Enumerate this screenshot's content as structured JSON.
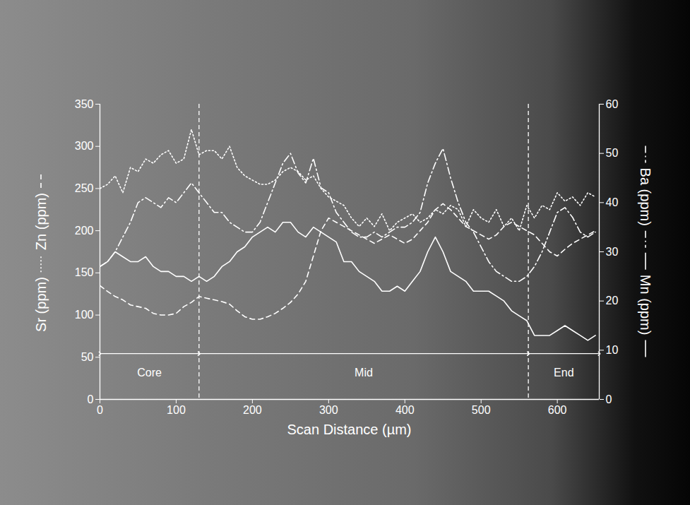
{
  "chart_data": {
    "type": "line",
    "x_label": "Scan Distance (µm)",
    "xlim": [
      0,
      655
    ],
    "xticks": [
      0,
      100,
      200,
      300,
      400,
      500,
      600
    ],
    "ylim": [
      0,
      350
    ],
    "yticks": [
      0,
      50,
      100,
      150,
      200,
      250,
      300,
      350
    ],
    "y2lim": [
      0,
      60
    ],
    "y2ticks": [
      0,
      10,
      20,
      30,
      40,
      50,
      60
    ],
    "x": [
      0,
      10,
      20,
      30,
      40,
      50,
      60,
      70,
      80,
      90,
      100,
      110,
      120,
      130,
      140,
      150,
      160,
      170,
      180,
      190,
      200,
      210,
      220,
      230,
      240,
      250,
      260,
      270,
      280,
      290,
      300,
      310,
      320,
      330,
      340,
      350,
      360,
      370,
      380,
      390,
      400,
      410,
      420,
      430,
      440,
      450,
      460,
      470,
      480,
      490,
      500,
      510,
      520,
      530,
      540,
      550,
      560,
      570,
      580,
      590,
      600,
      610,
      620,
      630,
      640,
      650
    ],
    "series": [
      {
        "name": "Sr (ppm)",
        "color": "#ffffff",
        "line_style": "dotted",
        "values": [
          250,
          255,
          265,
          245,
          275,
          270,
          285,
          280,
          290,
          295,
          280,
          285,
          320,
          290,
          295,
          295,
          285,
          300,
          275,
          265,
          260,
          255,
          255,
          260,
          270,
          275,
          270,
          260,
          265,
          250,
          240,
          235,
          230,
          215,
          205,
          215,
          205,
          220,
          200,
          210,
          215,
          220,
          210,
          215,
          225,
          220,
          230,
          225,
          205,
          225,
          215,
          210,
          225,
          205,
          215,
          200,
          230,
          215,
          230,
          225,
          245,
          235,
          240,
          230,
          245,
          240
        ]
      },
      {
        "name": "Zn (ppm)",
        "color": "#ffffff",
        "line_style": "dashed",
        "values": [
          135,
          128,
          122,
          118,
          112,
          110,
          108,
          102,
          100,
          100,
          102,
          110,
          115,
          122,
          120,
          118,
          116,
          113,
          105,
          98,
          95,
          95,
          98,
          102,
          108,
          115,
          125,
          140,
          170,
          200,
          215,
          210,
          205,
          200,
          195,
          190,
          185,
          190,
          195,
          190,
          185,
          190,
          200,
          210,
          225,
          232,
          225,
          215,
          205,
          200,
          195,
          190,
          195,
          205,
          210,
          205,
          200,
          195,
          185,
          175,
          170,
          178,
          185,
          190,
          195,
          200
        ]
      },
      {
        "name": "Ba (ppm)",
        "color": "#ffffff",
        "line_style": "dashdot",
        "axis": "y2",
        "values": [
          27,
          28,
          30,
          33,
          36,
          40,
          41,
          40,
          39,
          41,
          40,
          42,
          44,
          42,
          40,
          38,
          38,
          36,
          35,
          34,
          34,
          36,
          40,
          44,
          48,
          50,
          46,
          44,
          49,
          43,
          42,
          38,
          36,
          34,
          33,
          33,
          34,
          33,
          34,
          35,
          35,
          36,
          38,
          44,
          48,
          51,
          45,
          40,
          36,
          34,
          31,
          28,
          26,
          25,
          24,
          24,
          25,
          27,
          30,
          34,
          38,
          39,
          37,
          34,
          33,
          34
        ]
      },
      {
        "name": "Mn (ppm)",
        "color": "#ffffff",
        "line_style": "solid",
        "axis": "y2",
        "values": [
          27,
          28,
          30,
          29,
          28,
          28,
          29,
          27,
          26,
          26,
          25,
          25,
          24,
          25,
          24,
          25,
          27,
          28,
          30,
          31,
          33,
          34,
          35,
          34,
          36,
          36,
          34,
          33,
          35,
          34,
          33,
          32,
          28,
          28,
          26,
          25,
          24,
          22,
          22,
          23,
          22,
          24,
          26,
          30,
          33,
          30,
          26,
          25,
          24,
          22,
          22,
          22,
          21,
          20,
          18,
          17,
          16,
          13,
          13,
          13,
          14,
          15,
          14,
          13,
          12,
          13
        ]
      }
    ],
    "regions": [
      {
        "label": "Core",
        "start": 0,
        "end": 130
      },
      {
        "label": "Mid",
        "start": 130,
        "end": 562
      },
      {
        "label": "End",
        "start": 562,
        "end": 655
      }
    ]
  }
}
